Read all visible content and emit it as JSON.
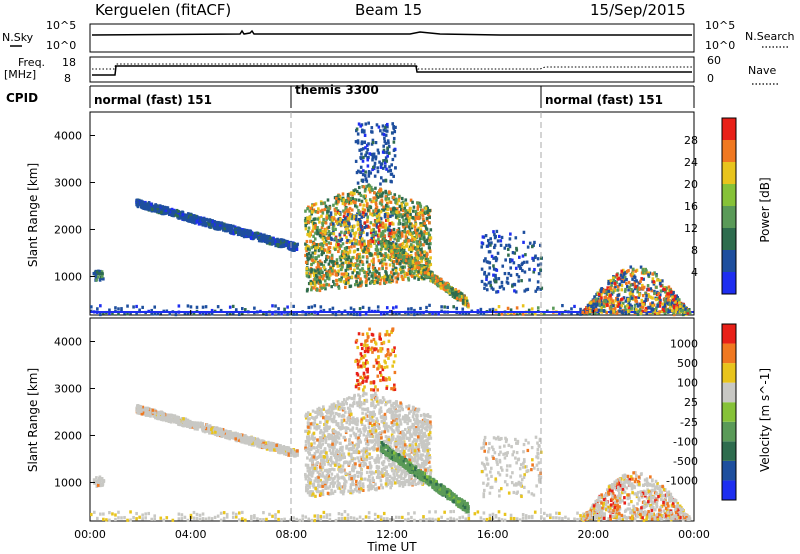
{
  "header": {
    "station": "Kerguelen (fitACF)",
    "beam": "Beam 15",
    "date": "15/Sep/2015"
  },
  "status_panels": {
    "nsky": {
      "label": "N.Sky",
      "tick_top": "10^5",
      "tick_bottom": "10^0"
    },
    "nsearch": {
      "label": "N.Search",
      "tick_top": "10^5",
      "tick_bottom": "10^0"
    },
    "freq": {
      "label_line1": "Freq.",
      "label_line2": "[MHz]",
      "tick_top": "18",
      "tick_bottom": "8"
    },
    "nave": {
      "label": "Nave",
      "tick_top": "60",
      "tick_bottom": "0"
    },
    "cpid": {
      "label": "CPID",
      "modes": [
        {
          "name": "normal (fast) 151",
          "start_h": 0,
          "end_h": 8
        },
        {
          "name": "themis 3300",
          "start_h": 8,
          "end_h": 18
        },
        {
          "name": "normal (fast) 151",
          "start_h": 18,
          "end_h": 24
        }
      ]
    }
  },
  "chart_data": [
    {
      "type": "heatmap",
      "title": "",
      "xlabel": "Time UT",
      "ylabel": "Slant Range [km]",
      "x_range_hours": [
        0,
        24
      ],
      "x_tick_labels": [
        "00:00",
        "04:00",
        "08:00",
        "12:00",
        "16:00",
        "20:00",
        "00:00"
      ],
      "ylim": [
        180,
        4500
      ],
      "y_ticks": [
        1000,
        2000,
        3000,
        4000
      ],
      "colorbar": {
        "label": "Power [dB]",
        "ticks": [
          "4",
          "8",
          "12",
          "16",
          "20",
          "24",
          "28"
        ],
        "colors": [
          "#1e2ef0",
          "#1e4f9e",
          "#2e6c4e",
          "#5a9a58",
          "#86c238",
          "#e8c41c",
          "#f07820",
          "#e82018"
        ]
      },
      "features": [
        {
          "desc": "ground scatter near 1000 km",
          "t": [
            0.1,
            0.5
          ],
          "range_km": [
            950,
            1150
          ],
          "level": 2
        },
        {
          "desc": "descending band",
          "t": [
            1.8,
            8.2
          ],
          "range_km": [
            1500,
            2650
          ],
          "level": 1
        },
        {
          "desc": "main echo region",
          "t": [
            8.5,
            13.5
          ],
          "range_km": [
            600,
            4300
          ],
          "level": 4
        },
        {
          "desc": "late evening arc",
          "t": [
            19.5,
            23.8
          ],
          "range_km": [
            250,
            1300
          ],
          "level": 4
        }
      ]
    },
    {
      "type": "heatmap",
      "title": "",
      "xlabel": "Time UT",
      "ylabel": "Slant Range [km]",
      "x_range_hours": [
        0,
        24
      ],
      "x_tick_labels": [
        "00:00",
        "04:00",
        "08:00",
        "12:00",
        "16:00",
        "20:00",
        "00:00"
      ],
      "ylim": [
        180,
        4500
      ],
      "y_ticks": [
        1000,
        2000,
        3000,
        4000
      ],
      "colorbar": {
        "label": "Velocity [m s^-1]",
        "ticks": [
          "1000",
          "500",
          "100",
          "25",
          "-25",
          "-100",
          "-500",
          "-1000"
        ],
        "colors": [
          "#1e2ef0",
          "#1e4f9e",
          "#2e6c4e",
          "#5a9a58",
          "#86c238",
          "#c8c8c4",
          "#e8c41c",
          "#f07820",
          "#e82018"
        ]
      },
      "features": [
        {
          "desc": "mostly near-zero velocities (grey)",
          "t": [
            1.5,
            18
          ],
          "range_km": [
            1400,
            2700
          ],
          "level": "grey"
        },
        {
          "desc": "green descending echoes",
          "t": [
            11.5,
            15
          ],
          "range_km": [
            400,
            1800
          ],
          "level": "green"
        }
      ]
    }
  ]
}
